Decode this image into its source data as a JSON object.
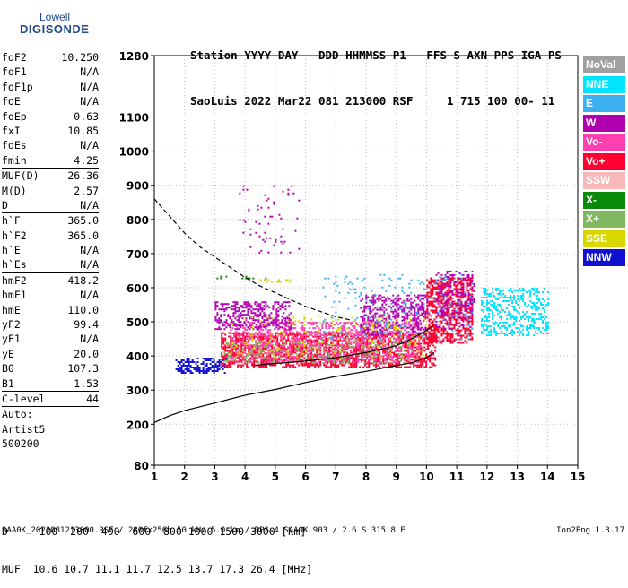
{
  "logo": {
    "line1": "Lowell",
    "line2": "DIGISONDE"
  },
  "header": {
    "line1": "Station YYYY DAY   DDD HHMMSS P1   FFS S AXN PPS IGA PS",
    "line2": "SaoLuis 2022 Mar22 081 213000 RSF     1 715 100 00- 11"
  },
  "params": [
    {
      "label": "foF2",
      "value": "10.250"
    },
    {
      "label": "foF1",
      "value": "N/A"
    },
    {
      "label": "foF1p",
      "value": "N/A"
    },
    {
      "label": "foE",
      "value": "N/A"
    },
    {
      "label": "foEp",
      "value": "0.63"
    },
    {
      "label": "fxI",
      "value": "10.85"
    },
    {
      "label": "foEs",
      "value": "N/A"
    },
    {
      "label": "fmin",
      "value": "4.25"
    },
    {
      "sep": true
    },
    {
      "label": "MUF(D)",
      "value": "26.36"
    },
    {
      "label": "M(D)",
      "value": "2.57"
    },
    {
      "label": "D",
      "value": "N/A"
    },
    {
      "sep": true
    },
    {
      "label": "h`F",
      "value": "365.0"
    },
    {
      "label": "h`F2",
      "value": "365.0"
    },
    {
      "label": "h`E",
      "value": "N/A"
    },
    {
      "label": "h`Es",
      "value": "N/A"
    },
    {
      "sep": true
    },
    {
      "label": "hmF2",
      "value": "418.2"
    },
    {
      "label": "hmF1",
      "value": "N/A"
    },
    {
      "label": "hmE",
      "value": "110.0"
    },
    {
      "label": "yF2",
      "value": "99.4"
    },
    {
      "label": "yF1",
      "value": "N/A"
    },
    {
      "label": "yE",
      "value": "20.0"
    },
    {
      "label": "B0",
      "value": "107.3"
    },
    {
      "label": "B1",
      "value": "1.53"
    },
    {
      "sep": true
    },
    {
      "label": "C-level",
      "value": "44"
    },
    {
      "sep": true
    }
  ],
  "auto": {
    "line1": "Auto:",
    "line2": "Artist5",
    "line3": "500200"
  },
  "legend": [
    {
      "label": "NoVal",
      "color": "#a0a0a0"
    },
    {
      "label": "NNE",
      "color": "#00e5ff"
    },
    {
      "label": "E",
      "color": "#3cb0f0"
    },
    {
      "label": "W",
      "color": "#b000b0"
    },
    {
      "label": "Vo-",
      "color": "#ff40b0"
    },
    {
      "label": "Vo+",
      "color": "#ff0030"
    },
    {
      "label": "SSW",
      "color": "#f8b8b8"
    },
    {
      "label": "X-",
      "color": "#0a8a0a"
    },
    {
      "label": "X+",
      "color": "#80b860"
    },
    {
      "label": "SSE",
      "color": "#d8d800"
    },
    {
      "label": "NNW",
      "color": "#1010d0"
    }
  ],
  "bottom": {
    "line1": "D     100  200  400  600  800 1000 1500 3000 [km]",
    "line2": "MUF  10.6 10.7 11.1 11.7 12.5 13.7 17.3 26.4 [MHz]"
  },
  "footer": {
    "source": "SAA0K_2022081213000.RSF / 280fx256h 50 kHz 5.0 km / DPS-4 SAA0K 903 / 2.6 S 315.8 E",
    "version": "Ion2Png 1.3.17"
  },
  "chart_data": {
    "type": "scatter",
    "xlim": [
      1,
      15
    ],
    "ylim": [
      80,
      1280
    ],
    "x_ticks": [
      1,
      2,
      3,
      4,
      5,
      6,
      7,
      8,
      9,
      10,
      11,
      12,
      13,
      14,
      15
    ],
    "y_ticks": [
      80,
      200,
      300,
      400,
      500,
      600,
      700,
      800,
      900,
      1000,
      1100,
      1280
    ],
    "grid": true,
    "legend_placement": "right",
    "traces": [
      {
        "style": "solid",
        "x": [
          1.0,
          1.5,
          2.0,
          3.0,
          4.0,
          5.0,
          6.0,
          7.0,
          8.0,
          9.0,
          9.5,
          10.0,
          10.25
        ],
        "y": [
          205,
          225,
          240,
          262,
          285,
          302,
          322,
          340,
          355,
          372,
          380,
          395,
          410
        ]
      },
      {
        "style": "solid",
        "x": [
          4.25,
          5.0,
          6.0,
          7.0,
          8.0,
          9.0,
          9.5,
          10.0,
          10.25
        ],
        "y": [
          372,
          378,
          385,
          395,
          410,
          430,
          450,
          475,
          490
        ]
      },
      {
        "style": "dashed",
        "x": [
          1.0,
          1.5,
          2.0,
          2.5,
          3.0,
          3.5,
          4.0,
          4.5,
          5.0,
          5.5,
          6.0,
          6.5,
          7.0,
          7.5
        ],
        "y": [
          860,
          810,
          760,
          720,
          690,
          660,
          630,
          605,
          585,
          565,
          545,
          530,
          515,
          505
        ]
      }
    ],
    "echo_regions": [
      {
        "pol": "NNW",
        "x": [
          1.7,
          3.4
        ],
        "y": [
          350,
          395
        ],
        "density": 0.55
      },
      {
        "pol": "Vo+",
        "x": [
          3.2,
          10.3
        ],
        "y": [
          365,
          470
        ],
        "density": 0.6
      },
      {
        "pol": "Vo-",
        "x": [
          3.5,
          9.8
        ],
        "y": [
          380,
          500
        ],
        "density": 0.35
      },
      {
        "pol": "W",
        "x": [
          3.0,
          5.5
        ],
        "y": [
          480,
          560
        ],
        "density": 0.45
      },
      {
        "pol": "W",
        "x": [
          7.8,
          10.0
        ],
        "y": [
          460,
          580
        ],
        "density": 0.4
      },
      {
        "pol": "Vo+",
        "x": [
          10.0,
          11.5
        ],
        "y": [
          440,
          630
        ],
        "density": 0.55
      },
      {
        "pol": "W",
        "x": [
          10.3,
          11.6
        ],
        "y": [
          480,
          650
        ],
        "density": 0.3
      },
      {
        "pol": "NNE",
        "x": [
          11.8,
          14.0
        ],
        "y": [
          460,
          600
        ],
        "density": 0.35
      },
      {
        "pol": "X+",
        "x": [
          3.3,
          9.5
        ],
        "y": [
          380,
          440
        ],
        "density": 0.18
      },
      {
        "pol": "SSE",
        "x": [
          3.5,
          10.0
        ],
        "y": [
          390,
          520
        ],
        "density": 0.06
      },
      {
        "pol": "E",
        "x": [
          6.5,
          11.5
        ],
        "y": [
          450,
          640
        ],
        "density": 0.06
      },
      {
        "pol": "W",
        "x": [
          3.8,
          5.8
        ],
        "y": [
          700,
          900
        ],
        "density": 0.05
      },
      {
        "pol": "X-",
        "x": [
          3.0,
          4.7
        ],
        "y": [
          625,
          635
        ],
        "density": 0.35
      },
      {
        "pol": "SSE",
        "x": [
          4.5,
          5.6
        ],
        "y": [
          615,
          625
        ],
        "density": 0.35
      }
    ]
  }
}
